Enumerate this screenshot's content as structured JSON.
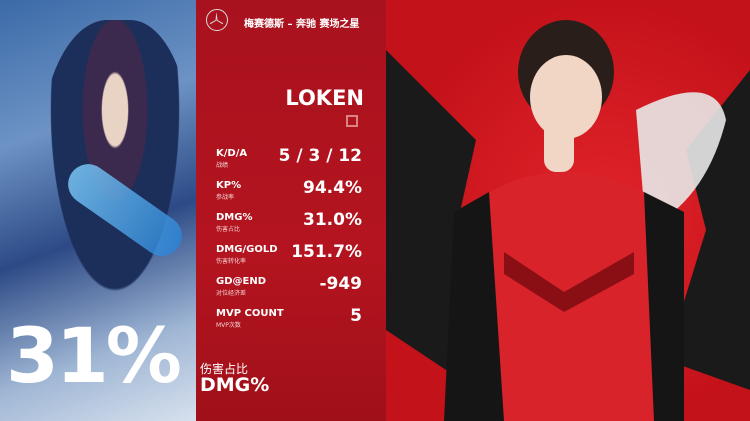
{
  "sponsor": "梅赛德斯 – 奔驰 赛场之星",
  "player_name": "LOKEN",
  "stats": [
    {
      "label": "K/D/A",
      "sub": "战绩",
      "value": "5 / 3 / 12"
    },
    {
      "label": "KP%",
      "sub": "参战率",
      "value": "94.4%"
    },
    {
      "label": "DMG%",
      "sub": "伤害占比",
      "value": "31.0%"
    },
    {
      "label": "DMG/GOLD",
      "sub": "伤害转化率",
      "value": "151.7%"
    },
    {
      "label": "GD@END",
      "sub": "对位经济差",
      "value": "-949"
    },
    {
      "label": "MVP COUNT",
      "sub": "MVP次数",
      "value": "5"
    }
  ],
  "highlight": {
    "value": "31%",
    "label_cn": "伤害占比",
    "label_en": "DMG%"
  },
  "colors": {
    "panel_red": "#a8121e",
    "background_red": "#d41c24",
    "text": "#ffffff"
  },
  "icons": {
    "logo": "mercedes-star-logo"
  }
}
